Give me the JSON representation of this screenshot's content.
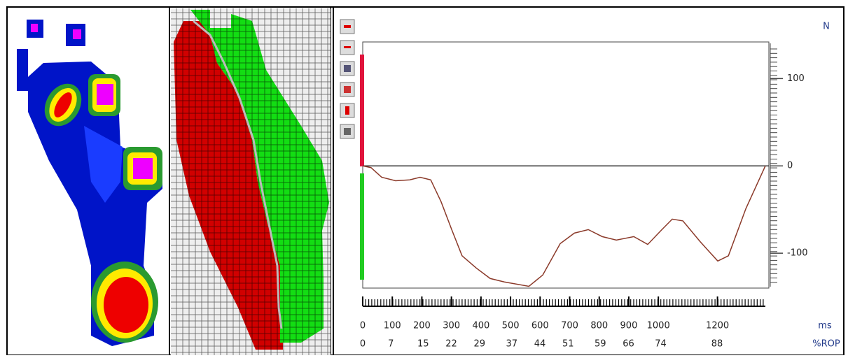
{
  "chart_data": {
    "type": "line",
    "y_label": "N",
    "x_label": "ms",
    "x2_label": "%ROP",
    "x": [
      0,
      28,
      64,
      111,
      159,
      194,
      230,
      265,
      301,
      336,
      384,
      431,
      479,
      562,
      609,
      668,
      716,
      763,
      810,
      858,
      917,
      964,
      1012,
      1047,
      1083,
      1142,
      1201,
      1237,
      1296,
      1362
    ],
    "series": [
      {
        "color": "#8b3a2a",
        "values": [
          0,
          -2,
          -13,
          -17,
          -16,
          -13,
          -16,
          -41,
          -73,
          -103,
          -117,
          -129,
          -133,
          -138,
          -125,
          -89,
          -77,
          -73,
          -81,
          -85,
          -81,
          -90,
          -73,
          -61,
          -63,
          -87,
          -109,
          -103,
          -49,
          0
        ]
      }
    ],
    "xlim": [
      0,
      1362
    ],
    "xticks": [
      0,
      100,
      200,
      300,
      400,
      500,
      600,
      700,
      800,
      900,
      1000,
      1200
    ],
    "x2lim": [
      0,
      100
    ],
    "x2ticks": [
      0,
      7,
      15,
      22,
      29,
      37,
      44,
      51,
      59,
      66,
      74,
      88
    ],
    "ylim": [
      -140,
      142
    ],
    "yticks": [
      -100,
      0,
      100
    ]
  }
}
